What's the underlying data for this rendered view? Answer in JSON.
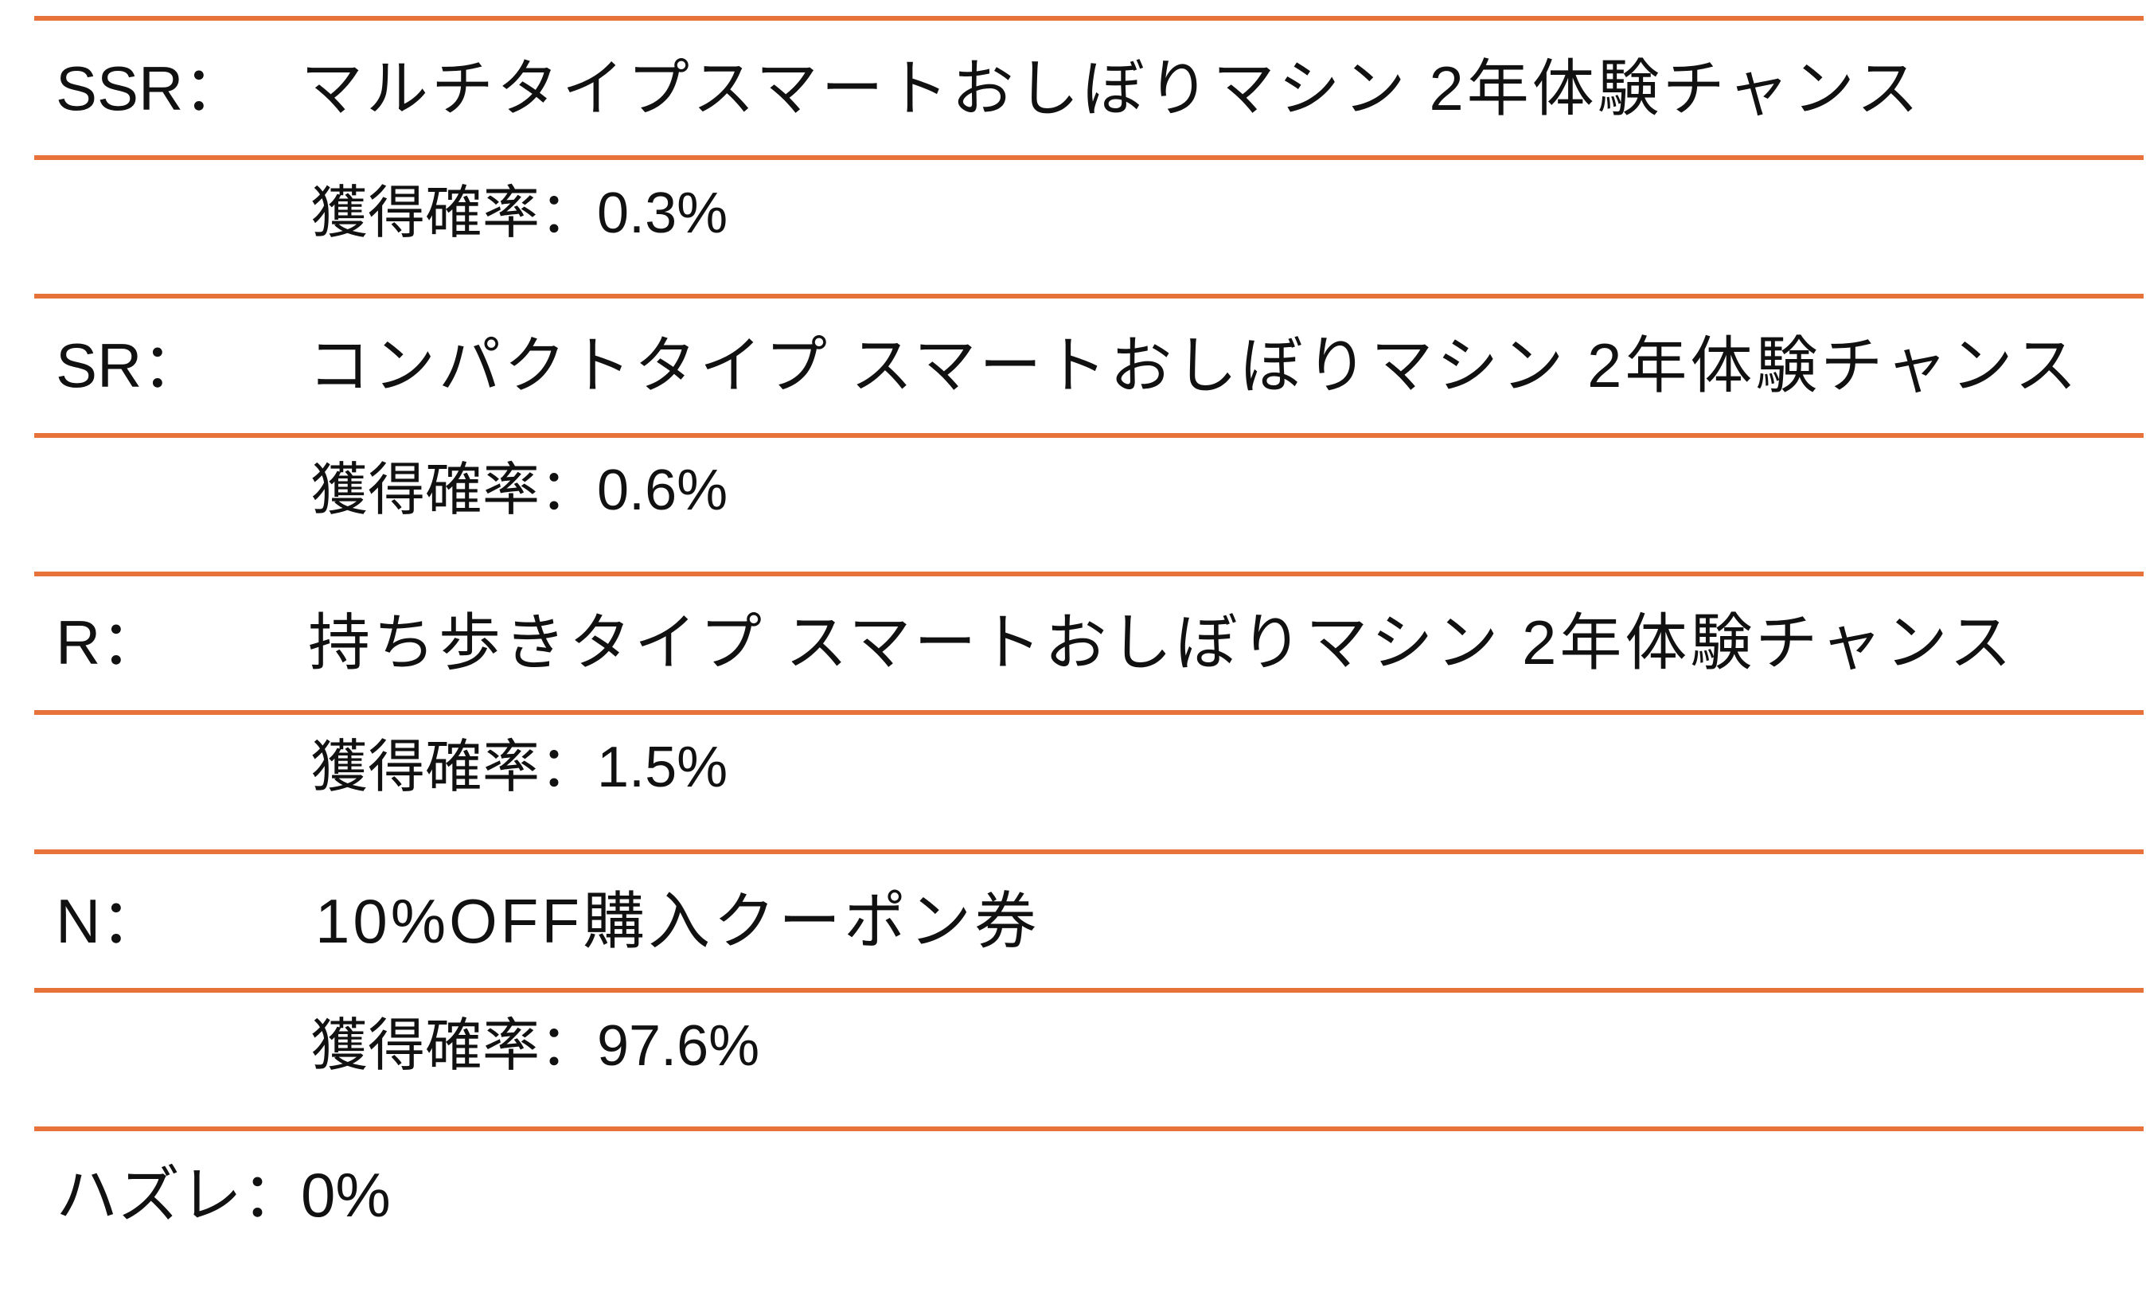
{
  "accent_color": "#E8733A",
  "tiers": [
    {
      "label": "SSR：",
      "prize": "マルチタイプスマートおしぼりマシン 2年体験チャンス",
      "rate_label": "獲得確率：",
      "rate": "0.3%"
    },
    {
      "label": "SR：",
      "prize": "コンパクトタイプ スマートおしぼりマシン 2年体験チャンス",
      "rate_label": "獲得確率：",
      "rate": "0.6%"
    },
    {
      "label": "R：",
      "prize": "持ち歩きタイプ スマートおしぼりマシン 2年体験チャンス",
      "rate_label": "獲得確率：",
      "rate": "1.5%"
    },
    {
      "label": "N：",
      "prize": "10%OFF購入クーポン券",
      "rate_label": "獲得確率：",
      "rate": "97.6%"
    }
  ],
  "miss": {
    "label": "ハズレ：",
    "rate": "0%"
  }
}
